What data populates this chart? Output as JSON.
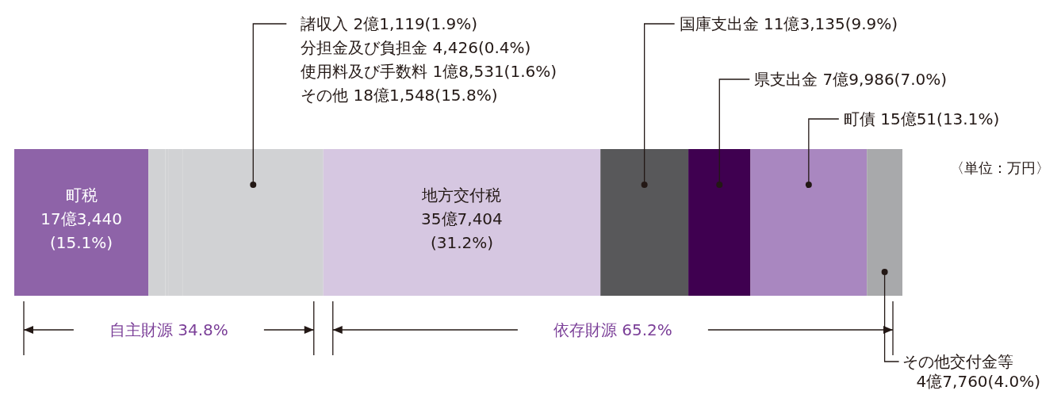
{
  "chart_data": {
    "type": "bar",
    "orientation": "horizontal",
    "stacked": true,
    "categories": [
      null
    ],
    "series": [
      {
        "name": "町税",
        "color": "#8e63a8",
        "values": [
          15.1
        ],
        "value_labels": [
          "17億3,440(15.1%)"
        ]
      },
      {
        "name": "諸収入",
        "color": "#d1d2d4",
        "values": [
          1.9
        ],
        "value_labels": [
          "2億1,119(1.9%)"
        ]
      },
      {
        "name": "分担金及び負担金",
        "color": "#d1d2d4",
        "values": [
          0.4
        ],
        "value_labels": [
          "4,426(0.4%)"
        ]
      },
      {
        "name": "使用料及び手数料",
        "color": "#d1d2d4",
        "values": [
          1.6
        ],
        "value_labels": [
          "1億8,531(1.6%)"
        ]
      },
      {
        "name": "その他",
        "color": "#d1d2d4",
        "values": [
          15.8
        ],
        "value_labels": [
          "18億1,548(15.8%)"
        ]
      },
      {
        "name": "地方交付税",
        "color": "#d6c7e1",
        "values": [
          31.2
        ],
        "value_labels": [
          "35億7,404(31.2%)"
        ]
      },
      {
        "name": "国庫支出金",
        "color": "#58585a",
        "values": [
          9.9
        ],
        "value_labels": [
          "11億3,135(9.9%)"
        ]
      },
      {
        "name": "県支出金",
        "color": "#3f0050",
        "values": [
          7.0
        ],
        "value_labels": [
          "7億9,986(7.0%)"
        ]
      },
      {
        "name": "町債",
        "color": "#a987c0",
        "values": [
          13.1
        ],
        "value_labels": [
          "15億51(13.1%)"
        ]
      },
      {
        "name": "その他交付金等",
        "color": "#a8a9ab",
        "values": [
          4.0
        ],
        "value_labels": [
          "4億7,760(4.0%)"
        ]
      }
    ],
    "annotations": [
      "〈単位：万円〉",
      "自主財源 34.8%",
      "依存財源 65.2%"
    ]
  }
}
